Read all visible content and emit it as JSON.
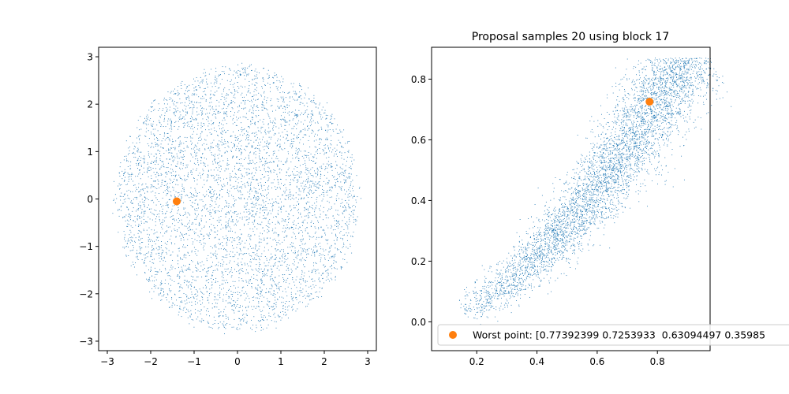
{
  "figure": {
    "background": "#ffffff"
  },
  "chart_data": [
    {
      "type": "scatter",
      "title": "",
      "xlabel": "",
      "ylabel": "",
      "xlim": [
        -3.2,
        3.2
      ],
      "ylim": [
        -3.2,
        3.2
      ],
      "xticks": [
        -3,
        -2,
        -1,
        0,
        1,
        2,
        3
      ],
      "xtick_labels": [
        "−3",
        "−2",
        "−1",
        "0",
        "1",
        "2",
        "3"
      ],
      "yticks": [
        -3,
        -2,
        -1,
        0,
        1,
        2,
        3
      ],
      "ytick_labels": [
        "−3",
        "−2",
        "−1",
        "0",
        "1",
        "2",
        "3"
      ],
      "grid": false,
      "series": [
        {
          "kind": "cloud",
          "description": "approx. 10000 samples, roughly uniform inside a disc of radius ~3 centred at (0, 0)",
          "distribution": "disc",
          "center": [
            0,
            0
          ],
          "radius": 2.9,
          "color": "#1f77b4"
        },
        {
          "kind": "point",
          "x": -1.4,
          "y": -0.05,
          "color": "#ff7f0e"
        }
      ]
    },
    {
      "type": "scatter",
      "title": "Proposal samples 20 using block 17",
      "xlabel": "",
      "ylabel": "",
      "xlim": [
        0.05,
        0.975
      ],
      "ylim": [
        -0.095,
        0.905
      ],
      "xticks": [
        0.2,
        0.4,
        0.6,
        0.8
      ],
      "xtick_labels": [
        "0.2",
        "0.4",
        "0.6",
        "0.8"
      ],
      "yticks": [
        0.0,
        0.2,
        0.4,
        0.6,
        0.8
      ],
      "ytick_labels": [
        "0.0",
        "0.2",
        "0.4",
        "0.6",
        "0.8"
      ],
      "grid": false,
      "legend": {
        "position": "bottom-left",
        "entries": [
          "Worst point: [0.77392399 0.7253933  0.63094497 0.35985"
        ]
      },
      "series": [
        {
          "kind": "cloud",
          "description": "approx. 10000 samples along a curved band from (0.15, 0.0) to (0.92, 0.85), y ≈ x^1.45, densest near (0.8, 0.65)",
          "distribution": "curved-band",
          "x_range": [
            0.13,
            0.93
          ],
          "curve_exponent": 1.45,
          "color": "#1f77b4"
        },
        {
          "kind": "point",
          "name": "Worst point: [0.77392399 0.7253933  0.63094497 0.35985",
          "x": 0.77392399,
          "y": 0.7253933,
          "color": "#ff7f0e"
        }
      ]
    }
  ]
}
